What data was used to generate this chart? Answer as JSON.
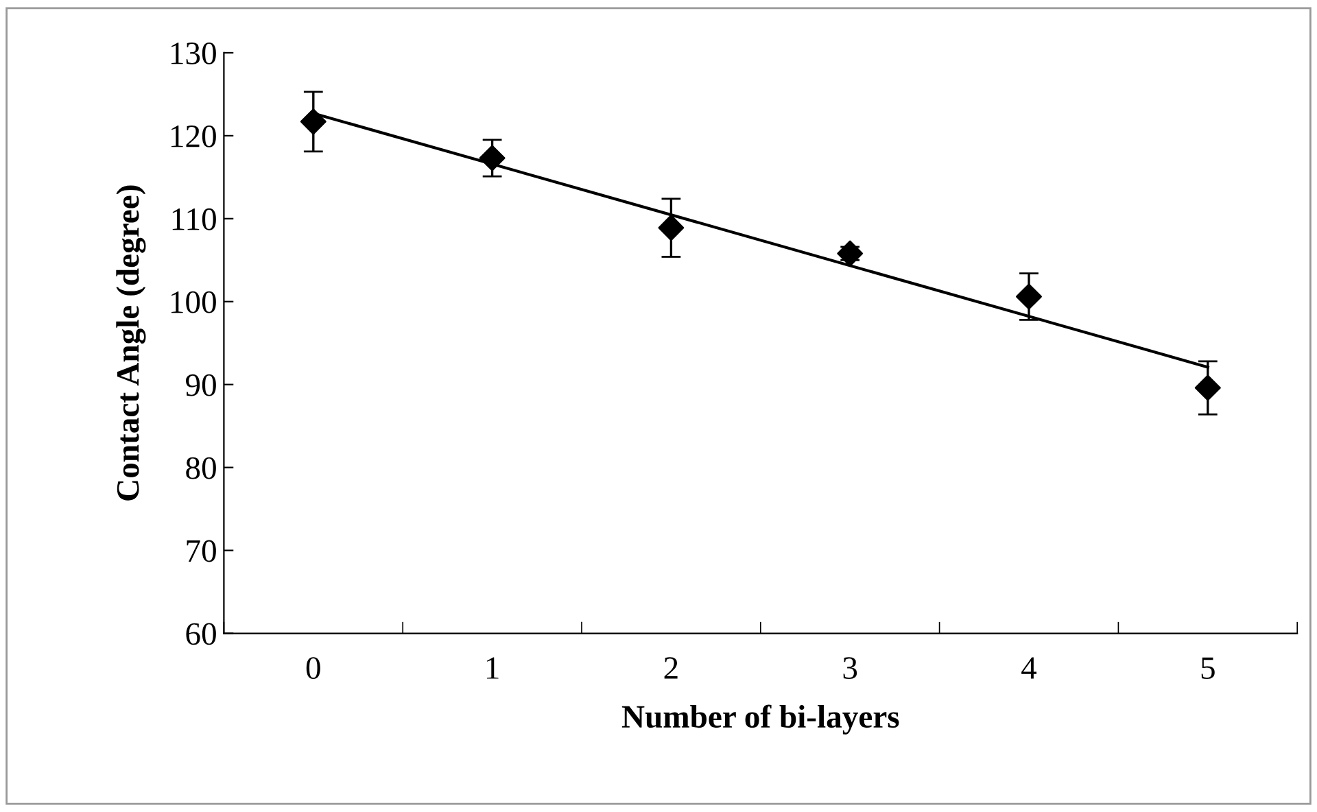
{
  "chart_data": {
    "type": "scatter",
    "xlabel": "Number of bi-layers",
    "ylabel": "Contact Angle (degree)",
    "categories": [
      "0",
      "1",
      "2",
      "3",
      "4",
      "5"
    ],
    "series": [
      {
        "color": "#000000",
        "marker": "diamond",
        "values": [
          121.7,
          117.3,
          108.9,
          105.8,
          100.6,
          89.6
        ],
        "errors": [
          3.6,
          2.2,
          3.5,
          0.8,
          2.8,
          3.2
        ]
      },
      {
        "type": "line",
        "color": "#000000",
        "marker": "none",
        "line_style": "solid",
        "x": [
          "0",
          "5"
        ],
        "values": [
          122.7,
          92.1
        ]
      }
    ],
    "ylim": [
      60,
      130
    ],
    "yticks": [
      60,
      70,
      80,
      90,
      100,
      110,
      120,
      130
    ],
    "grid": false,
    "legend": false
  }
}
